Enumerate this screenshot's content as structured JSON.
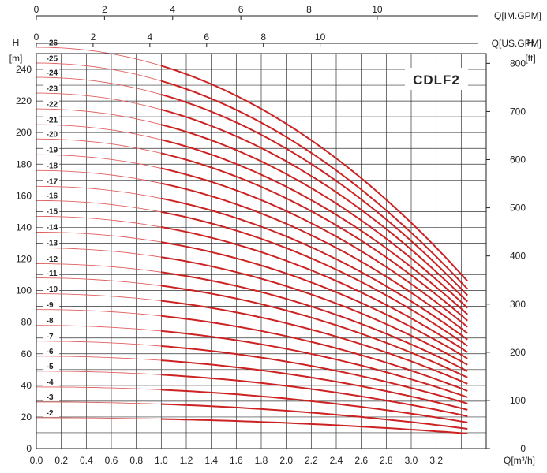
{
  "chart_data": {
    "type": "line",
    "title": "CDLF2",
    "xlabel": "Q[m³/h]",
    "ylabel": "H",
    "yunit": "[m]",
    "y2label": "H",
    "y2unit": "[ft]",
    "top_axis_us_label": "Q[US.GPM]",
    "top_axis_im_label": "Q[IM.GPM]",
    "xlim": [
      0,
      3.6
    ],
    "ylim": [
      0,
      250
    ],
    "x_ticks": [
      "0.0",
      "0.2",
      "0.4",
      "0.6",
      "0.8",
      "1.0",
      "1.2",
      "1.4",
      "1.6",
      "1.8",
      "2.0",
      "2.2",
      "2.4",
      "2.6",
      "2.8",
      "3.0",
      "3.2"
    ],
    "y_ticks": [
      0,
      20,
      40,
      60,
      80,
      100,
      120,
      140,
      160,
      180,
      200,
      220,
      240
    ],
    "ft_ticks": [
      0,
      100,
      200,
      300,
      400,
      500,
      600,
      700,
      800
    ],
    "us_gpm_ticks": [
      0,
      2,
      4,
      6,
      8,
      10
    ],
    "im_gpm_ticks": [
      0,
      2,
      4,
      6,
      8,
      10
    ],
    "operating_range": [
      1.0,
      3.45
    ],
    "stages": [
      {
        "label": "-2",
        "h0": 19.5,
        "h_end": 9.5
      },
      {
        "label": "-3",
        "h0": 29.5,
        "h_end": 12.5
      },
      {
        "label": "-4",
        "h0": 39,
        "h_end": 16.5
      },
      {
        "label": "-5",
        "h0": 49,
        "h_end": 20.5
      },
      {
        "label": "-6",
        "h0": 58.5,
        "h_end": 24.5
      },
      {
        "label": "-7",
        "h0": 68,
        "h_end": 28.5
      },
      {
        "label": "-8",
        "h0": 78,
        "h_end": 32.5
      },
      {
        "label": "-9",
        "h0": 88,
        "h_end": 36.5
      },
      {
        "label": "-10",
        "h0": 98,
        "h_end": 41
      },
      {
        "label": "-11",
        "h0": 108,
        "h_end": 45
      },
      {
        "label": "-12",
        "h0": 117,
        "h_end": 49
      },
      {
        "label": "-13",
        "h0": 127,
        "h_end": 53
      },
      {
        "label": "-14",
        "h0": 137,
        "h_end": 57
      },
      {
        "label": "-15",
        "h0": 147,
        "h_end": 61
      },
      {
        "label": "-16",
        "h0": 157,
        "h_end": 65
      },
      {
        "label": "-17",
        "h0": 166,
        "h_end": 69
      },
      {
        "label": "-18",
        "h0": 176,
        "h_end": 73
      },
      {
        "label": "-19",
        "h0": 186,
        "h_end": 77
      },
      {
        "label": "-20",
        "h0": 196,
        "h_end": 81
      },
      {
        "label": "-21",
        "h0": 205,
        "h_end": 85
      },
      {
        "label": "-22",
        "h0": 215,
        "h_end": 89
      },
      {
        "label": "-23",
        "h0": 225,
        "h_end": 93
      },
      {
        "label": "-24",
        "h0": 235,
        "h_end": 97
      },
      {
        "label": "-25",
        "h0": 244,
        "h_end": 101
      },
      {
        "label": "-26",
        "h0": 254,
        "h_end": 106
      }
    ],
    "colors": {
      "curve": "#cc2222",
      "thin": "#e06060",
      "grid": "#333333"
    },
    "grid": true
  }
}
